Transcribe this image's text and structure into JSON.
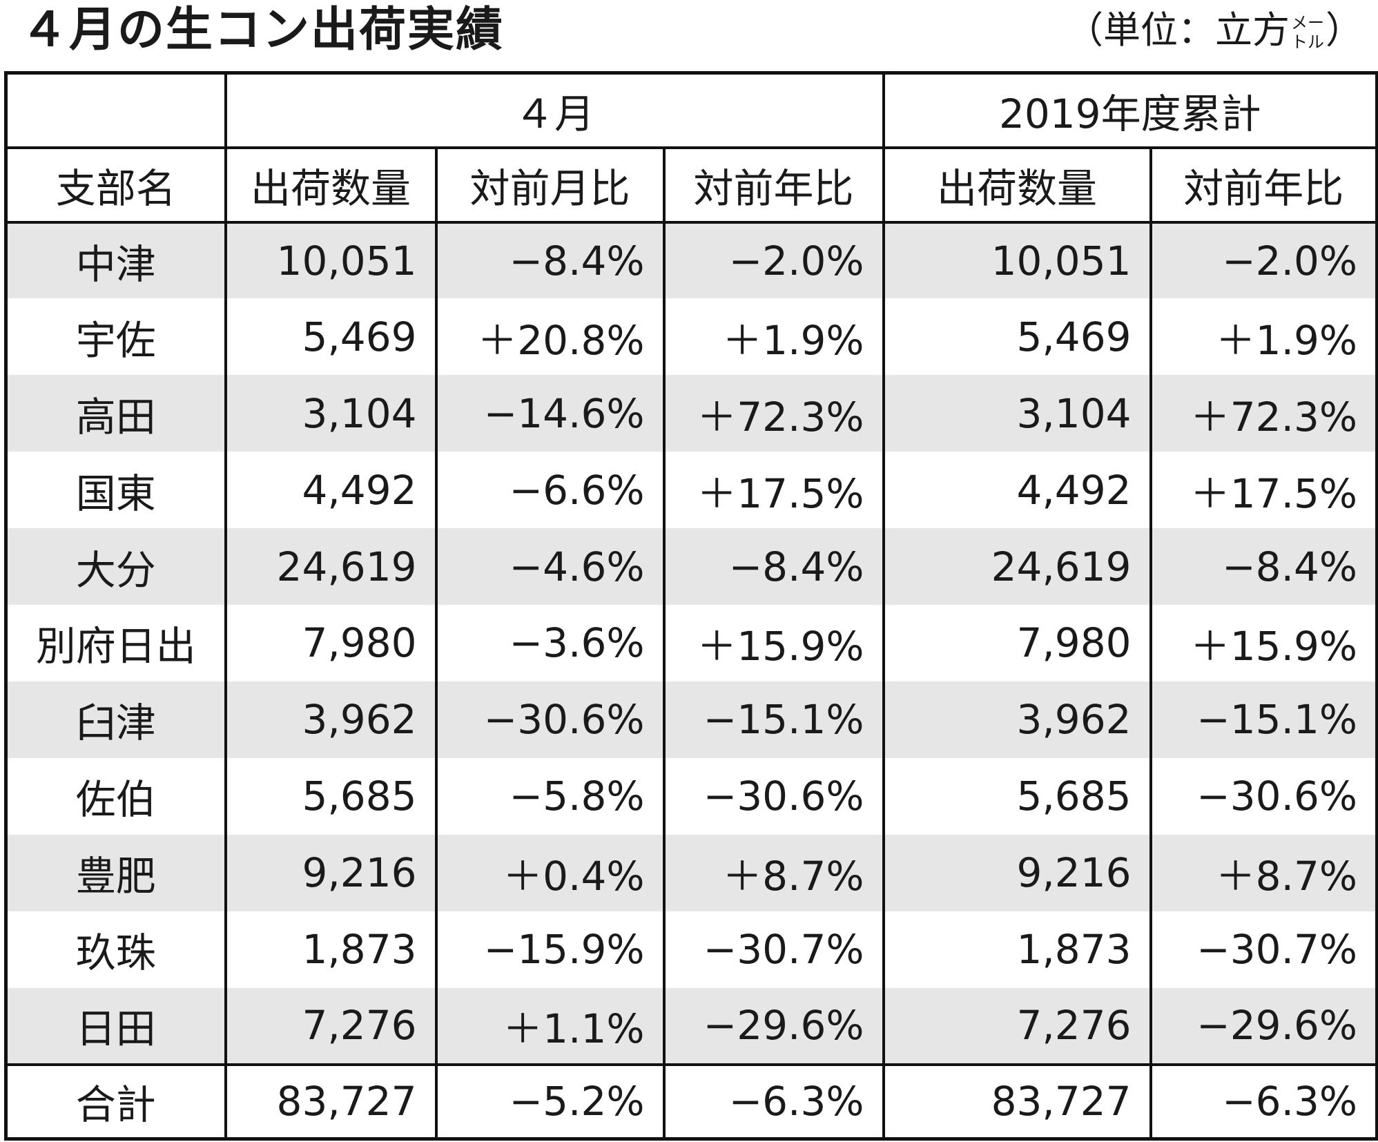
{
  "title": "４月の生コン出荷実績",
  "unit": {
    "prefix": "（単位：立方",
    "sup_top": "メー",
    "sup_bottom": "トル",
    "suffix": "）"
  },
  "table": {
    "group_headers": {
      "month": "４月",
      "cumulative": "2019年度累計"
    },
    "columns": [
      "支部名",
      "出荷数量",
      "対前月比",
      "対前年比",
      "出荷数量",
      "対前年比"
    ],
    "rows": [
      {
        "name": "中津",
        "qty": "10,051",
        "mom": "−8.4%",
        "yoy": "−2.0%",
        "cum_qty": "10,051",
        "cum_yoy": "−2.0%"
      },
      {
        "name": "宇佐",
        "qty": "5,469",
        "mom": "＋20.8%",
        "yoy": "＋1.9%",
        "cum_qty": "5,469",
        "cum_yoy": "＋1.9%"
      },
      {
        "name": "高田",
        "qty": "3,104",
        "mom": "−14.6%",
        "yoy": "＋72.3%",
        "cum_qty": "3,104",
        "cum_yoy": "＋72.3%"
      },
      {
        "name": "国東",
        "qty": "4,492",
        "mom": "−6.6%",
        "yoy": "＋17.5%",
        "cum_qty": "4,492",
        "cum_yoy": "＋17.5%"
      },
      {
        "name": "大分",
        "qty": "24,619",
        "mom": "−4.6%",
        "yoy": "−8.4%",
        "cum_qty": "24,619",
        "cum_yoy": "−8.4%"
      },
      {
        "name": "別府日出",
        "qty": "7,980",
        "mom": "−3.6%",
        "yoy": "＋15.9%",
        "cum_qty": "7,980",
        "cum_yoy": "＋15.9%"
      },
      {
        "name": "臼津",
        "qty": "3,962",
        "mom": "−30.6%",
        "yoy": "−15.1%",
        "cum_qty": "3,962",
        "cum_yoy": "−15.1%"
      },
      {
        "name": "佐伯",
        "qty": "5,685",
        "mom": "−5.8%",
        "yoy": "−30.6%",
        "cum_qty": "5,685",
        "cum_yoy": "−30.6%"
      },
      {
        "name": "豊肥",
        "qty": "9,216",
        "mom": "＋0.4%",
        "yoy": "＋8.7%",
        "cum_qty": "9,216",
        "cum_yoy": "＋8.7%"
      },
      {
        "name": "玖珠",
        "qty": "1,873",
        "mom": "−15.9%",
        "yoy": "−30.7%",
        "cum_qty": "1,873",
        "cum_yoy": "−30.7%"
      },
      {
        "name": "日田",
        "qty": "7,276",
        "mom": "＋1.1%",
        "yoy": "−29.6%",
        "cum_qty": "7,276",
        "cum_yoy": "−29.6%"
      }
    ],
    "total": {
      "name": "合計",
      "qty": "83,727",
      "mom": "−5.2%",
      "yoy": "−6.3%",
      "cum_qty": "83,727",
      "cum_yoy": "−6.3%"
    }
  },
  "colors": {
    "stripe": "#e6e6e6",
    "border": "#111111",
    "text": "#1a1a1a"
  }
}
